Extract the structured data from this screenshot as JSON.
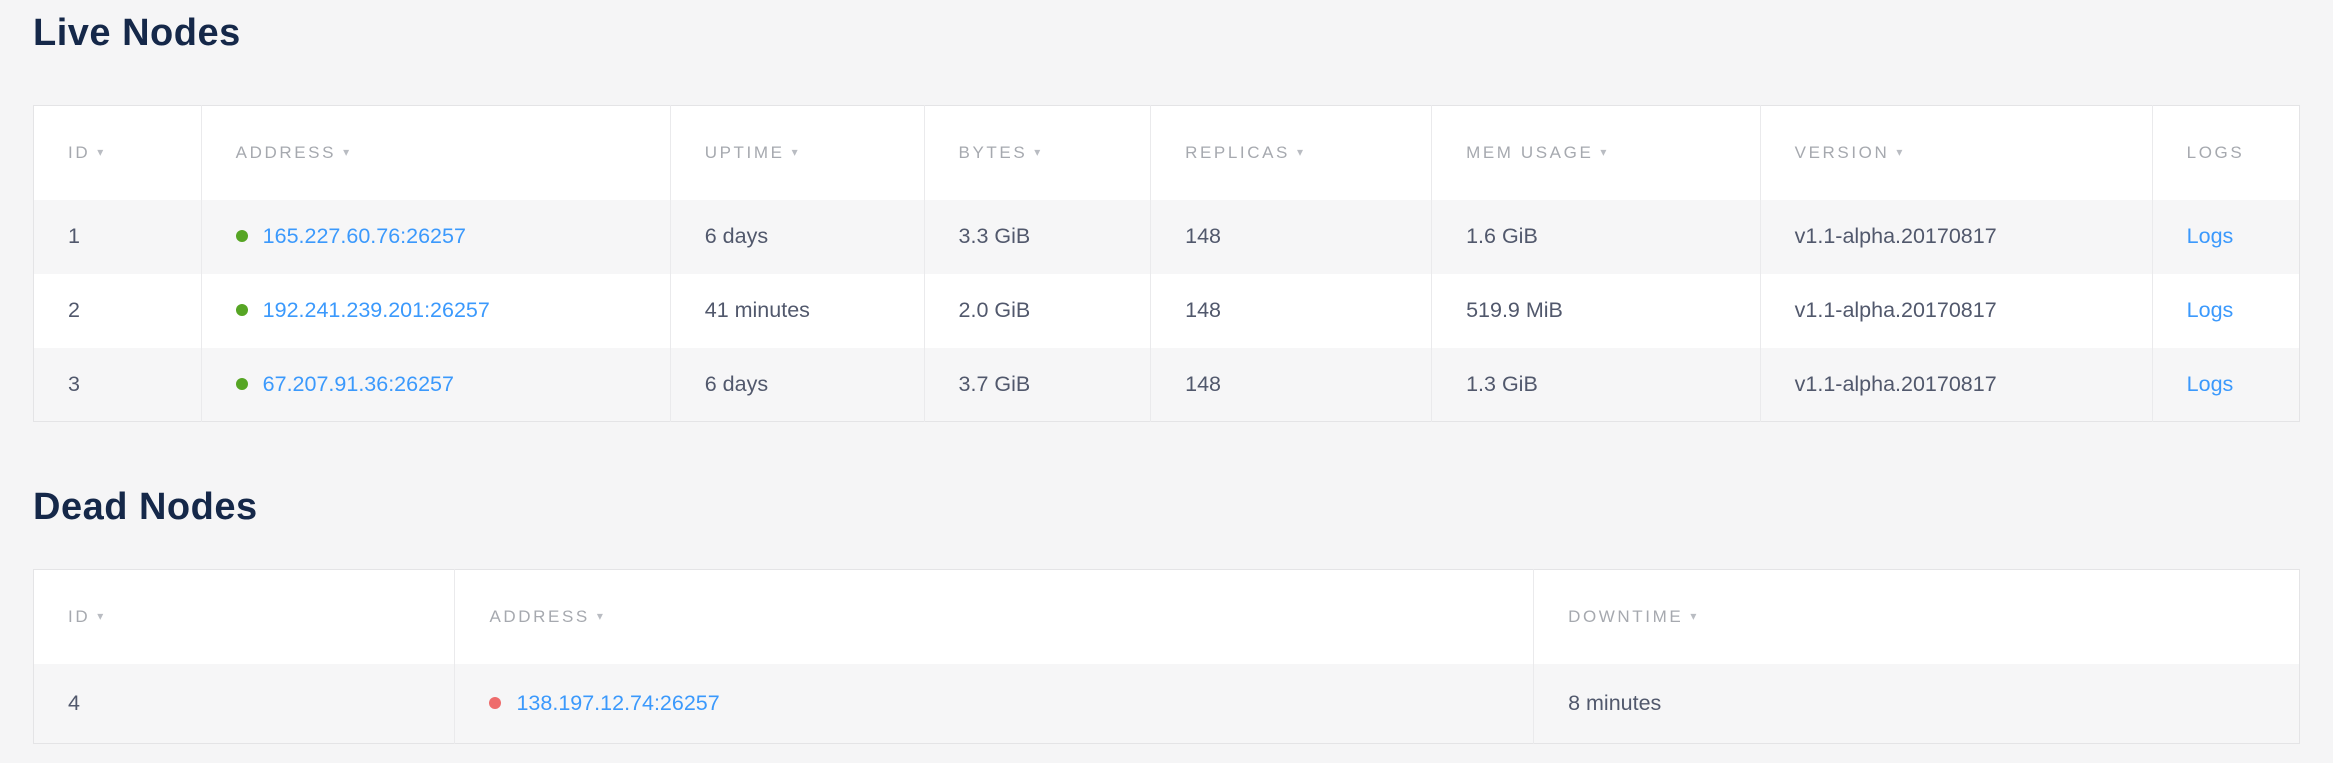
{
  "ui": {
    "sort_arrow": "▾"
  },
  "colors": {
    "title_navy": "#152849",
    "link_blue": "#3b99fc",
    "live_green": "#56a524",
    "dead_red": "#ee6c6c",
    "header_gray": "#a6a9af",
    "cell_text": "#51586c",
    "page_background": "#f5f5f6",
    "stripe_gray": "#f6f6f7"
  },
  "live_nodes": {
    "title": "Live Nodes",
    "columns": [
      {
        "label": "ID",
        "sortable": true
      },
      {
        "label": "Address",
        "sortable": true
      },
      {
        "label": "Uptime",
        "sortable": true
      },
      {
        "label": "Bytes",
        "sortable": true
      },
      {
        "label": "Replicas",
        "sortable": true
      },
      {
        "label": "Mem Usage",
        "sortable": true
      },
      {
        "label": "Version",
        "sortable": true
      },
      {
        "label": "Logs",
        "sortable": false
      }
    ],
    "rows": [
      {
        "id": "1",
        "status": "live",
        "address": "165.227.60.76:26257",
        "uptime": "6 days",
        "bytes": "3.3 GiB",
        "replicas": "148",
        "mem_usage": "1.6 GiB",
        "version": "v1.1-alpha.20170817",
        "logs_label": "Logs"
      },
      {
        "id": "2",
        "status": "live",
        "address": "192.241.239.201:26257",
        "uptime": "41 minutes",
        "bytes": "2.0 GiB",
        "replicas": "148",
        "mem_usage": "519.9 MiB",
        "version": "v1.1-alpha.20170817",
        "logs_label": "Logs"
      },
      {
        "id": "3",
        "status": "live",
        "address": "67.207.91.36:26257",
        "uptime": "6 days",
        "bytes": "3.7 GiB",
        "replicas": "148",
        "mem_usage": "1.3 GiB",
        "version": "v1.1-alpha.20170817",
        "logs_label": "Logs"
      }
    ]
  },
  "dead_nodes": {
    "title": "Dead Nodes",
    "columns": [
      {
        "label": "ID",
        "sortable": true
      },
      {
        "label": "Address",
        "sortable": true
      },
      {
        "label": "Downtime",
        "sortable": true
      }
    ],
    "rows": [
      {
        "id": "4",
        "status": "dead",
        "address": "138.197.12.74:26257",
        "downtime": "8 minutes"
      }
    ]
  }
}
